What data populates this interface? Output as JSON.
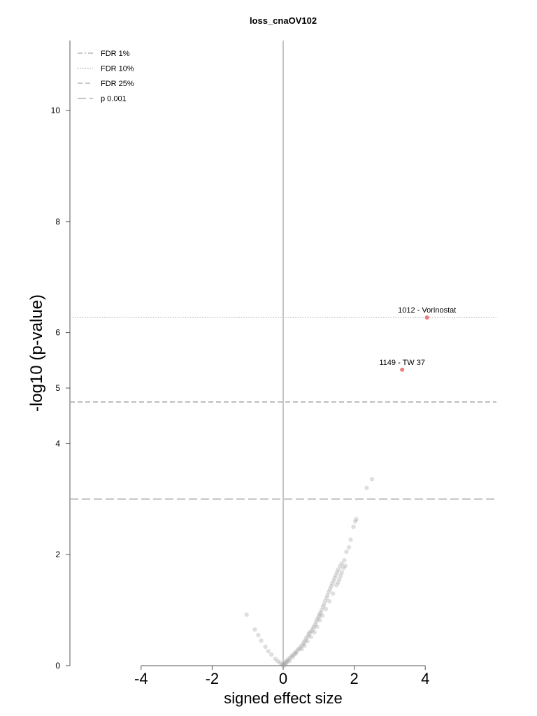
{
  "chart_data": {
    "type": "scatter",
    "title": "loss_cnaOV102",
    "xlabel": "signed effect size",
    "ylabel": "-log10 (p-value)",
    "xlim": [
      -6,
      6
    ],
    "ylim": [
      0,
      11.5
    ],
    "xticks": [
      -4,
      -2,
      0,
      2,
      4
    ],
    "yticks": [
      0,
      2,
      4,
      5,
      6,
      8,
      10
    ],
    "legend_position": "top-left",
    "grid": false,
    "legend": [
      {
        "label": "FDR 1%",
        "style": "dashdot"
      },
      {
        "label": "FDR 10%",
        "style": "dotted"
      },
      {
        "label": "FDR 25%",
        "style": "dashed"
      },
      {
        "label": "p 0.001",
        "style": "longdash"
      }
    ],
    "thresholds": [
      {
        "name": "FDR 10%",
        "y": 6.27,
        "style": "dotted"
      },
      {
        "name": "FDR 25%",
        "y": 4.75,
        "style": "dashed"
      },
      {
        "name": "p 0.001",
        "y": 3.0,
        "style": "longdash"
      }
    ],
    "highlighted": [
      {
        "label": "1012 - Vorinostat",
        "x": 4.05,
        "y": 6.27
      },
      {
        "label": "1149 - TW 37",
        "x": 3.35,
        "y": 5.33
      }
    ],
    "colors": {
      "points": "#9a9a9a",
      "highlight": "#ee7c7c",
      "threshold": "#a8a8a8",
      "zero_line": "#c4c4c4"
    },
    "points": [
      [
        -1.03,
        0.92
      ],
      [
        -0.8,
        0.65
      ],
      [
        -0.7,
        0.55
      ],
      [
        -0.62,
        0.45
      ],
      [
        -0.5,
        0.34
      ],
      [
        -0.42,
        0.26
      ],
      [
        -0.33,
        0.2
      ],
      [
        -0.22,
        0.12
      ],
      [
        -0.15,
        0.08
      ],
      [
        -0.08,
        0.05
      ],
      [
        -0.03,
        0.02
      ],
      [
        0.02,
        0.03
      ],
      [
        0.06,
        0.06
      ],
      [
        0.1,
        0.09
      ],
      [
        0.15,
        0.12
      ],
      [
        0.2,
        0.14
      ],
      [
        0.24,
        0.18
      ],
      [
        0.3,
        0.2
      ],
      [
        0.33,
        0.23
      ],
      [
        0.38,
        0.26
      ],
      [
        0.42,
        0.29
      ],
      [
        0.46,
        0.31
      ],
      [
        0.5,
        0.35
      ],
      [
        0.55,
        0.38
      ],
      [
        0.58,
        0.42
      ],
      [
        0.62,
        0.45
      ],
      [
        0.65,
        0.5
      ],
      [
        0.7,
        0.53
      ],
      [
        0.72,
        0.57
      ],
      [
        0.75,
        0.6
      ],
      [
        0.8,
        0.62
      ],
      [
        0.83,
        0.66
      ],
      [
        0.86,
        0.7
      ],
      [
        0.9,
        0.74
      ],
      [
        0.93,
        0.79
      ],
      [
        0.96,
        0.84
      ],
      [
        1.0,
        0.88
      ],
      [
        1.02,
        0.92
      ],
      [
        1.05,
        0.95
      ],
      [
        1.08,
        1.0
      ],
      [
        1.12,
        1.06
      ],
      [
        1.15,
        1.1
      ],
      [
        1.18,
        1.16
      ],
      [
        1.22,
        1.22
      ],
      [
        1.25,
        1.27
      ],
      [
        1.28,
        1.33
      ],
      [
        1.32,
        1.38
      ],
      [
        1.35,
        1.43
      ],
      [
        1.38,
        1.48
      ],
      [
        1.42,
        1.53
      ],
      [
        1.45,
        1.58
      ],
      [
        1.48,
        1.63
      ],
      [
        1.52,
        1.68
      ],
      [
        1.55,
        1.73
      ],
      [
        1.6,
        1.79
      ],
      [
        1.65,
        1.84
      ],
      [
        1.72,
        1.9
      ],
      [
        1.78,
        2.05
      ],
      [
        1.85,
        2.13
      ],
      [
        1.9,
        2.27
      ],
      [
        1.98,
        2.5
      ],
      [
        2.03,
        2.6
      ],
      [
        2.06,
        2.64
      ],
      [
        2.35,
        3.2
      ],
      [
        2.5,
        3.36
      ],
      [
        0.0,
        0.0
      ],
      [
        0.04,
        0.01
      ],
      [
        0.08,
        0.04
      ],
      [
        0.12,
        0.07
      ],
      [
        0.18,
        0.09
      ],
      [
        0.27,
        0.16
      ],
      [
        0.36,
        0.22
      ],
      [
        0.52,
        0.3
      ],
      [
        0.6,
        0.36
      ],
      [
        0.68,
        0.44
      ],
      [
        0.78,
        0.52
      ],
      [
        0.88,
        0.6
      ],
      [
        0.95,
        0.7
      ],
      [
        1.03,
        0.82
      ],
      [
        1.1,
        0.9
      ],
      [
        1.2,
        1.02
      ],
      [
        1.3,
        1.16
      ],
      [
        1.4,
        1.3
      ],
      [
        1.5,
        1.45
      ],
      [
        1.58,
        1.56
      ],
      [
        1.65,
        1.68
      ],
      [
        1.75,
        1.8
      ],
      [
        1.7,
        1.76
      ],
      [
        1.62,
        1.62
      ],
      [
        1.55,
        1.5
      ]
    ]
  }
}
